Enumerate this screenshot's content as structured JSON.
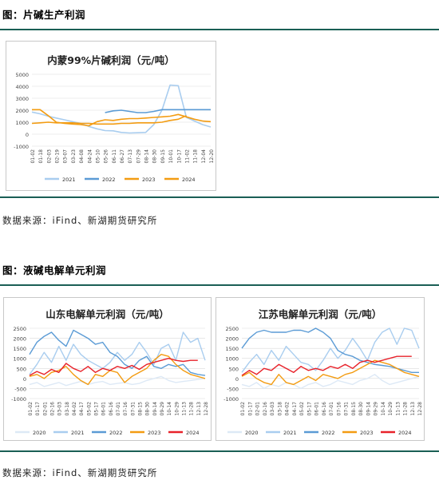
{
  "section1": {
    "title": "图：片碱生产利润",
    "source": "数据来源：iFind、新湖期货研究所"
  },
  "section2": {
    "title": "图：液碱电解单元利润",
    "source": "数据来源：iFind、新湖期货研究所"
  },
  "colors": {
    "rule": "#1a5f55",
    "s2020": "#dde9f6",
    "s2021": "#a9cdef",
    "s2022": "#5b9bd5",
    "s2023": "#f39c12",
    "s2024": "#e8222a",
    "grid": "#d9d9d9"
  },
  "chart_data": [
    {
      "id": "flake",
      "type": "line",
      "title": "内蒙99%片碱利润（元/吨）",
      "ylim": [
        -1000,
        5000
      ],
      "yticks": [
        -1000,
        0,
        1000,
        2000,
        3000,
        4000,
        5000
      ],
      "x_tick_labels": [
        "01-02",
        "01-18",
        "02-03",
        "02-19",
        "03-07",
        "03-23",
        "04-08",
        "04-24",
        "05-10",
        "05-26",
        "06-11",
        "06-27",
        "07-13",
        "07-29",
        "08-14",
        "08-30",
        "09-15",
        "10-01",
        "10-17",
        "11-02",
        "11-18",
        "12-04",
        "12-20"
      ],
      "series": [
        {
          "name": "2021",
          "color_key": "s2021",
          "values": [
            1850,
            1700,
            1500,
            1350,
            1200,
            1050,
            900,
            650,
            450,
            300,
            280,
            150,
            100,
            120,
            150,
            800,
            2000,
            4100,
            4050,
            1400,
            1100,
            800,
            600
          ]
        },
        {
          "name": "2022",
          "color_key": "s2022",
          "values": [
            null,
            null,
            null,
            null,
            null,
            null,
            null,
            null,
            null,
            1800,
            1950,
            2000,
            1900,
            1800,
            1800,
            1900,
            2050,
            2050,
            2050,
            2050,
            2050,
            2050,
            2050
          ]
        },
        {
          "name": "2023",
          "color_key": "s2023",
          "values": [
            2050,
            2050,
            1550,
            1000,
            900,
            850,
            800,
            700,
            1050,
            1200,
            1150,
            1250,
            1300,
            1300,
            1350,
            1400,
            1450,
            1500,
            1650,
            1450,
            1250,
            1100,
            1050
          ]
        },
        {
          "name": "2024",
          "color_key": "s2023b",
          "values": [
            900,
            950,
            1000,
            950,
            950,
            950,
            900,
            900,
            850,
            850,
            850,
            900,
            900,
            950,
            950,
            950,
            1000,
            1150,
            1250,
            1550,
            null,
            null,
            null
          ]
        }
      ],
      "legend": [
        "2021",
        "2022",
        "2023",
        "2024"
      ],
      "legend_position": "bottom"
    },
    {
      "id": "shandong",
      "type": "line",
      "title": "山东电解单元利润（元/吨）",
      "ylim": [
        -1000,
        2500
      ],
      "yticks": [
        -1000,
        -500,
        0,
        500,
        1000,
        1500,
        2000,
        2500
      ],
      "x_tick_labels": [
        "01-02",
        "01-17",
        "02-01",
        "02-16",
        "03-03",
        "03-18",
        "04-02",
        "04-17",
        "05-02",
        "05-17",
        "06-01",
        "06-16",
        "07-01",
        "07-16",
        "07-31",
        "08-15",
        "08-30",
        "09-14",
        "09-29",
        "10-14",
        "10-29",
        "11-13",
        "11-28",
        "12-13",
        "12-28"
      ],
      "series": [
        {
          "name": "2020",
          "color_key": "s2020",
          "values": [
            -300,
            -200,
            -400,
            -300,
            -200,
            -350,
            -250,
            -150,
            -300,
            -200,
            -150,
            -300,
            -250,
            -200,
            -300,
            -250,
            -100,
            0,
            100,
            -100,
            -200,
            -150,
            -100,
            -50,
            0
          ]
        },
        {
          "name": "2021",
          "color_key": "s2021",
          "values": [
            200,
            700,
            1300,
            800,
            1600,
            900,
            1700,
            1200,
            900,
            700,
            500,
            800,
            1300,
            900,
            1200,
            1800,
            1300,
            700,
            1500,
            1700,
            900,
            2300,
            1800,
            2000,
            900
          ]
        },
        {
          "name": "2022",
          "color_key": "s2022",
          "values": [
            1200,
            1800,
            2100,
            2300,
            1900,
            1600,
            2400,
            2200,
            2000,
            1700,
            1800,
            1300,
            1100,
            700,
            500,
            900,
            1100,
            600,
            500,
            700,
            600,
            700,
            300,
            200,
            150
          ]
        },
        {
          "name": "2023",
          "color_key": "s2023",
          "values": [
            100,
            200,
            0,
            300,
            400,
            600,
            200,
            -100,
            -300,
            200,
            100,
            400,
            300,
            -200,
            100,
            300,
            500,
            900,
            1200,
            1100,
            700,
            400,
            200,
            100,
            0
          ]
        },
        {
          "name": "2024",
          "color_key": "s2024",
          "values": [
            150,
            350,
            200,
            450,
            300,
            750,
            500,
            350,
            600,
            300,
            500,
            400,
            600,
            500,
            650,
            450,
            700,
            800,
            900,
            1000,
            900,
            850,
            900,
            900,
            null
          ]
        }
      ],
      "legend": [
        "2020",
        "2021",
        "2022",
        "2023",
        "2024"
      ],
      "legend_position": "bottom"
    },
    {
      "id": "jiangsu",
      "type": "line",
      "title": "江苏电解单元利润（元/吨）",
      "ylim": [
        -1000,
        2500
      ],
      "yticks": [
        -1000,
        -500,
        0,
        500,
        1000,
        1500,
        2000,
        2500
      ],
      "x_tick_labels": [
        "01-02",
        "01-17",
        "02-01",
        "02-16",
        "03-03",
        "03-18",
        "04-02",
        "04-17",
        "05-02",
        "05-17",
        "06-01",
        "06-16",
        "07-01",
        "07-16",
        "07-31",
        "08-15",
        "08-30",
        "09-14",
        "09-29",
        "10-14",
        "10-29",
        "11-13",
        "11-28",
        "12-13",
        "12-28"
      ],
      "series": [
        {
          "name": "2020",
          "color_key": "s2020",
          "values": [
            -300,
            -400,
            -200,
            -500,
            -300,
            -400,
            -200,
            -300,
            -500,
            -300,
            -200,
            -400,
            -300,
            -100,
            -200,
            -300,
            -100,
            0,
            200,
            -100,
            -300,
            -200,
            -100,
            0,
            100
          ]
        },
        {
          "name": "2021",
          "color_key": "s2021",
          "values": [
            300,
            800,
            1200,
            700,
            1400,
            900,
            1600,
            1200,
            800,
            700,
            400,
            900,
            1500,
            1000,
            1400,
            2000,
            1500,
            900,
            1800,
            2300,
            2500,
            1700,
            2500,
            2400,
            1500
          ]
        },
        {
          "name": "2022",
          "color_key": "s2022",
          "values": [
            1500,
            2000,
            2300,
            2400,
            2300,
            2300,
            2300,
            2400,
            2400,
            2300,
            2500,
            2300,
            2000,
            1400,
            1200,
            1100,
            900,
            800,
            700,
            650,
            600,
            500,
            400,
            300,
            300
          ]
        },
        {
          "name": "2023",
          "color_key": "s2023",
          "values": [
            100,
            300,
            0,
            -200,
            -300,
            200,
            -200,
            -300,
            -100,
            100,
            -100,
            200,
            100,
            0,
            200,
            300,
            500,
            700,
            900,
            800,
            700,
            500,
            300,
            200,
            100
          ]
        },
        {
          "name": "2024",
          "color_key": "s2024",
          "values": [
            150,
            400,
            200,
            500,
            400,
            700,
            500,
            300,
            600,
            400,
            500,
            400,
            600,
            500,
            700,
            500,
            800,
            900,
            800,
            900,
            1000,
            1100,
            1100,
            1100,
            null
          ]
        }
      ],
      "legend": [
        "2020",
        "2021",
        "2022",
        "2023",
        "2024"
      ],
      "legend_position": "bottom"
    }
  ]
}
